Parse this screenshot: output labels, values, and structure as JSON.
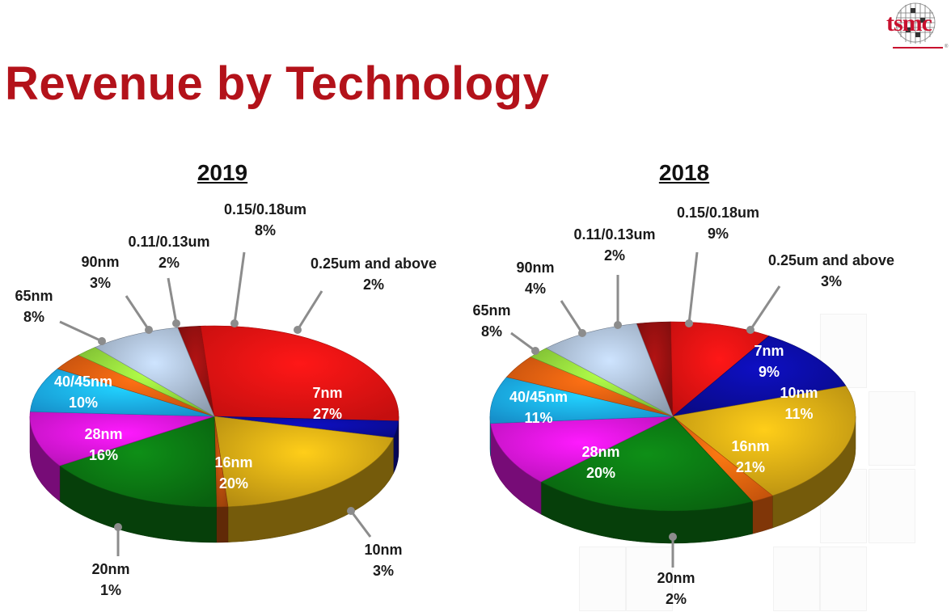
{
  "title": "Revenue by Technology",
  "logo": {
    "text": "tsmc",
    "mark": "®",
    "color": "#c8102e"
  },
  "chart_data": [
    {
      "type": "pie",
      "title": "2019",
      "slices": [
        {
          "label": "0.25um and above",
          "value": 2,
          "display": "2%",
          "color": "#8e0f0f"
        },
        {
          "label": "7nm",
          "value": 27,
          "display": "27%",
          "color": "#e81212"
        },
        {
          "label": "10nm",
          "value": 3,
          "display": "3%",
          "color": "#0b0c9c"
        },
        {
          "label": "16nm",
          "value": 20,
          "display": "20%",
          "color": "#d4a514"
        },
        {
          "label": "20nm",
          "value": 1,
          "display": "1%",
          "color": "#b04a0c"
        },
        {
          "label": "28nm",
          "value": 16,
          "display": "16%",
          "color": "#0b7212"
        },
        {
          "label": "40/45nm",
          "value": 10,
          "display": "10%",
          "color": "#d915d9"
        },
        {
          "label": "65nm",
          "value": 8,
          "display": "8%",
          "color": "#1aa8ee"
        },
        {
          "label": "90nm",
          "value": 3,
          "display": "3%",
          "color": "#dd5a10"
        },
        {
          "label": "0.11/0.13um",
          "value": 2,
          "display": "2%",
          "color": "#8ed63a"
        },
        {
          "label": "0.15/0.18um",
          "value": 8,
          "display": "8%",
          "color": "#a5b6cc"
        }
      ]
    },
    {
      "type": "pie",
      "title": "2018",
      "slices": [
        {
          "label": "0.25um and above",
          "value": 3,
          "display": "3%",
          "color": "#8e0f0f"
        },
        {
          "label": "7nm",
          "value": 9,
          "display": "9%",
          "color": "#e81212"
        },
        {
          "label": "10nm",
          "value": 11,
          "display": "11%",
          "color": "#0b0c9c"
        },
        {
          "label": "16nm",
          "value": 21,
          "display": "21%",
          "color": "#d4a514"
        },
        {
          "label": "20nm",
          "value": 2,
          "display": "2%",
          "color": "#e8620e"
        },
        {
          "label": "28nm",
          "value": 20,
          "display": "20%",
          "color": "#0b7212"
        },
        {
          "label": "40/45nm",
          "value": 11,
          "display": "11%",
          "color": "#d915d9"
        },
        {
          "label": "65nm",
          "value": 8,
          "display": "8%",
          "color": "#1aa8ee"
        },
        {
          "label": "90nm",
          "value": 4,
          "display": "4%",
          "color": "#dd5a10"
        },
        {
          "label": "0.11/0.13um",
          "value": 2,
          "display": "2%",
          "color": "#8ed63a"
        },
        {
          "label": "0.15/0.18um",
          "value": 9,
          "display": "9%",
          "color": "#a5b6cc"
        }
      ]
    }
  ]
}
